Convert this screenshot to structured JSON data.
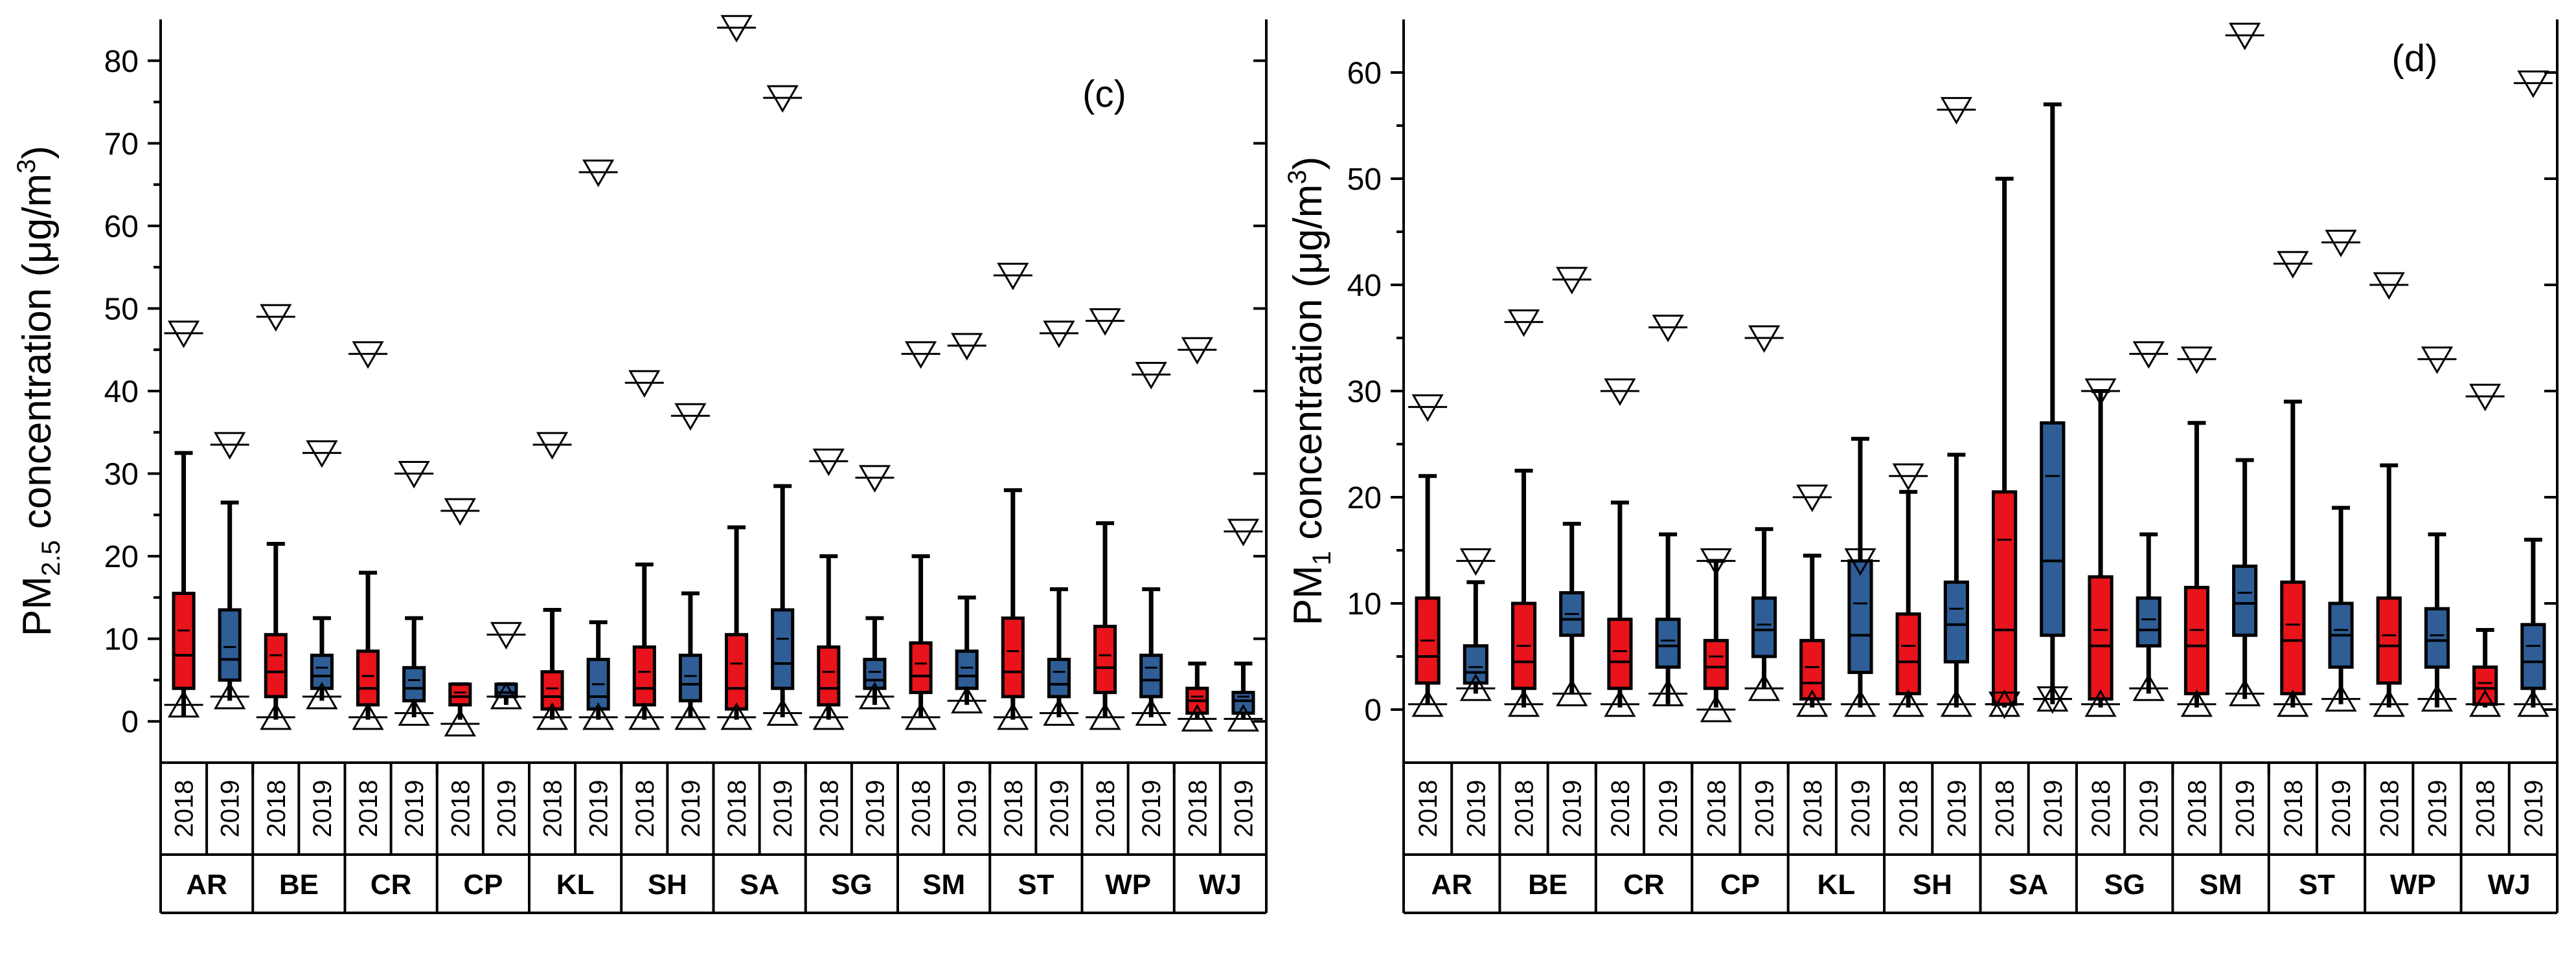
{
  "chart_data": [
    {
      "type": "box",
      "panel_label": "(c)",
      "ylabel_main": "PM",
      "ylabel_sub": "2.5",
      "ylabel_rest": " concentration (μg/m",
      "ylabel_sup": "3",
      "ylabel_end": ")",
      "ylim": [
        -5,
        85
      ],
      "yticks": [
        0,
        10,
        20,
        30,
        40,
        50,
        60,
        70,
        80
      ],
      "stations": [
        "AR",
        "BE",
        "CR",
        "CP",
        "KL",
        "SH",
        "SA",
        "SG",
        "SM",
        "ST",
        "WP",
        "WJ"
      ],
      "years": [
        "2018",
        "2019"
      ],
      "series": [
        {
          "name": "2018",
          "color": "#e8131b",
          "boxes": [
            {
              "station": "AR",
              "min": 0.5,
              "q1": 4,
              "median": 8,
              "mean": 11,
              "q3": 15.5,
              "max": 32.5,
              "p1": 2,
              "p99": 47
            },
            {
              "station": "BE",
              "min": 0.2,
              "q1": 3,
              "median": 6,
              "mean": 8,
              "q3": 10.5,
              "max": 21.5,
              "p1": 0.5,
              "p99": 49
            },
            {
              "station": "CR",
              "min": 0.2,
              "q1": 2,
              "median": 4,
              "mean": 5.5,
              "q3": 8.5,
              "max": 18,
              "p1": 0.5,
              "p99": 44.5
            },
            {
              "station": "CP",
              "min": 0.2,
              "q1": 2,
              "median": 3,
              "mean": 3.5,
              "q3": 4.5,
              "max": 4.5,
              "p1": -0.3,
              "p99": 25.5
            },
            {
              "station": "KL",
              "min": 0.2,
              "q1": 1.5,
              "median": 3,
              "mean": 4,
              "q3": 6,
              "max": 13.5,
              "p1": 0.5,
              "p99": 33.5
            },
            {
              "station": "SH",
              "min": 0.2,
              "q1": 2,
              "median": 4,
              "mean": 6,
              "q3": 9,
              "max": 19,
              "p1": 0.5,
              "p99": 41
            },
            {
              "station": "SA",
              "min": 0.2,
              "q1": 1.5,
              "median": 4,
              "mean": 7,
              "q3": 10.5,
              "max": 23.5,
              "p1": 0.5,
              "p99": 84
            },
            {
              "station": "SG",
              "min": 0.2,
              "q1": 2,
              "median": 4,
              "mean": 6,
              "q3": 9,
              "max": 20,
              "p1": 0.5,
              "p99": 31.5
            },
            {
              "station": "SM",
              "min": 0.5,
              "q1": 3.5,
              "median": 5.5,
              "mean": 7,
              "q3": 9.5,
              "max": 20,
              "p1": 0.5,
              "p99": 44.5
            },
            {
              "station": "ST",
              "min": 0.2,
              "q1": 3,
              "median": 6,
              "mean": 8.5,
              "q3": 12.5,
              "max": 28,
              "p1": 0.5,
              "p99": 54
            },
            {
              "station": "WP",
              "min": 0.5,
              "q1": 3.5,
              "median": 6.5,
              "mean": 8,
              "q3": 11.5,
              "max": 24,
              "p1": 0.5,
              "p99": 48.5
            },
            {
              "station": "WJ",
              "min": 0.2,
              "q1": 1,
              "median": 2.5,
              "mean": 3,
              "q3": 4,
              "max": 7,
              "p1": 0.3,
              "p99": 45
            }
          ]
        },
        {
          "name": "2019",
          "color": "#2f5d96",
          "boxes": [
            {
              "station": "AR",
              "min": 2.5,
              "q1": 5,
              "median": 7.5,
              "mean": 9,
              "q3": 13.5,
              "max": 26.5,
              "p1": 3,
              "p99": 33.5
            },
            {
              "station": "BE",
              "min": 2.5,
              "q1": 4,
              "median": 5.5,
              "mean": 6.5,
              "q3": 8,
              "max": 12.5,
              "p1": 3,
              "p99": 32.5
            },
            {
              "station": "CR",
              "min": 0.5,
              "q1": 2.5,
              "median": 4,
              "mean": 5,
              "q3": 6.5,
              "max": 12.5,
              "p1": 1,
              "p99": 30
            },
            {
              "station": "CP",
              "min": 2,
              "q1": 3,
              "median": 3.5,
              "mean": 3.5,
              "q3": 4.5,
              "max": 4.5,
              "p1": 3,
              "p99": 10.5
            },
            {
              "station": "KL",
              "min": 0.2,
              "q1": 1.5,
              "median": 3,
              "mean": 4.5,
              "q3": 7.5,
              "max": 12,
              "p1": 0.5,
              "p99": 66.5
            },
            {
              "station": "SH",
              "min": 0.5,
              "q1": 2.5,
              "median": 4.5,
              "mean": 5.5,
              "q3": 8,
              "max": 15.5,
              "p1": 0.5,
              "p99": 37
            },
            {
              "station": "SA",
              "min": 0.5,
              "q1": 4,
              "median": 7,
              "mean": 10,
              "q3": 13.5,
              "max": 28.5,
              "p1": 1,
              "p99": 75.5
            },
            {
              "station": "SG",
              "min": 2,
              "q1": 4,
              "median": 5,
              "mean": 6,
              "q3": 7.5,
              "max": 12.5,
              "p1": 3,
              "p99": 29.5
            },
            {
              "station": "SM",
              "min": 2,
              "q1": 4,
              "median": 5.5,
              "mean": 6.5,
              "q3": 8.5,
              "max": 15,
              "p1": 2.5,
              "p99": 45.5
            },
            {
              "station": "ST",
              "min": 0.5,
              "q1": 3,
              "median": 4.5,
              "mean": 6,
              "q3": 7.5,
              "max": 16,
              "p1": 1,
              "p99": 47
            },
            {
              "station": "WP",
              "min": 0.5,
              "q1": 3,
              "median": 5,
              "mean": 6.5,
              "q3": 8,
              "max": 16,
              "p1": 1,
              "p99": 42
            },
            {
              "station": "WJ",
              "min": 0.2,
              "q1": 1,
              "median": 2.5,
              "mean": 3,
              "q3": 3.5,
              "max": 7,
              "p1": 0.3,
              "p99": 23
            }
          ]
        }
      ]
    },
    {
      "type": "box",
      "panel_label": "(d)",
      "ylabel_main": "PM",
      "ylabel_sub": "1",
      "ylabel_rest": " concentration (μg/m",
      "ylabel_sup": "3",
      "ylabel_end": ")",
      "ylim": [
        -5,
        65
      ],
      "yticks": [
        0,
        10,
        20,
        30,
        40,
        50,
        60
      ],
      "stations": [
        "AR",
        "BE",
        "CR",
        "CP",
        "KL",
        "SH",
        "SA",
        "SG",
        "SM",
        "ST",
        "WP",
        "WJ"
      ],
      "years": [
        "2018",
        "2019"
      ],
      "series": [
        {
          "name": "2018",
          "color": "#e8131b",
          "boxes": [
            {
              "station": "AR",
              "min": 0.5,
              "q1": 2.5,
              "median": 5,
              "mean": 6.5,
              "q3": 10.5,
              "max": 22,
              "p1": 0.5,
              "p99": 28.5
            },
            {
              "station": "BE",
              "min": 0.2,
              "q1": 2,
              "median": 4.5,
              "mean": 6,
              "q3": 10,
              "max": 22.5,
              "p1": 0.5,
              "p99": 36.5
            },
            {
              "station": "CR",
              "min": 0.2,
              "q1": 2,
              "median": 4.5,
              "mean": 5.5,
              "q3": 8.5,
              "max": 19.5,
              "p1": 0.5,
              "p99": 30
            },
            {
              "station": "CP",
              "min": 0.2,
              "q1": 2,
              "median": 4,
              "mean": 5,
              "q3": 6.5,
              "max": 14,
              "p1": 0,
              "p99": 14
            },
            {
              "station": "KL",
              "min": 0.2,
              "q1": 1,
              "median": 2.5,
              "mean": 4,
              "q3": 6.5,
              "max": 14.5,
              "p1": 0.5,
              "p99": 20
            },
            {
              "station": "SH",
              "min": 0.2,
              "q1": 1.5,
              "median": 4.5,
              "mean": 6,
              "q3": 9,
              "max": 20.5,
              "p1": 0.5,
              "p99": 22
            },
            {
              "station": "SA",
              "min": 0.2,
              "q1": 0.5,
              "median": 7.5,
              "mean": 16,
              "q3": 20.5,
              "max": 50,
              "p1": 0.5,
              "p99": 0.5
            },
            {
              "station": "SG",
              "min": 0.2,
              "q1": 1,
              "median": 6,
              "mean": 7.5,
              "q3": 12.5,
              "max": 30,
              "p1": 0.5,
              "p99": 30
            },
            {
              "station": "SM",
              "min": 0.2,
              "q1": 1.5,
              "median": 6,
              "mean": 7.5,
              "q3": 11.5,
              "max": 27,
              "p1": 0.5,
              "p99": 33
            },
            {
              "station": "ST",
              "min": 0.2,
              "q1": 1.5,
              "median": 6.5,
              "mean": 8,
              "q3": 12,
              "max": 29,
              "p1": 0.5,
              "p99": 42
            },
            {
              "station": "WP",
              "min": 0.2,
              "q1": 2.5,
              "median": 6,
              "mean": 7,
              "q3": 10.5,
              "max": 23,
              "p1": 0.5,
              "p99": 40
            },
            {
              "station": "WJ",
              "min": 0.2,
              "q1": 0.5,
              "median": 2,
              "mean": 2.5,
              "q3": 4,
              "max": 7.5,
              "p1": 0.5,
              "p99": 29.5
            }
          ]
        },
        {
          "name": "2019",
          "color": "#2f5d96",
          "boxes": [
            {
              "station": "AR",
              "min": 1.5,
              "q1": 2.5,
              "median": 3.5,
              "mean": 4,
              "q3": 6,
              "max": 12,
              "p1": 2,
              "p99": 14
            },
            {
              "station": "BE",
              "min": 1.5,
              "q1": 7,
              "median": 8.5,
              "mean": 9,
              "q3": 11,
              "max": 17.5,
              "p1": 1.5,
              "p99": 40.5
            },
            {
              "station": "CR",
              "min": 0.5,
              "q1": 4,
              "median": 6,
              "mean": 6.5,
              "q3": 8.5,
              "max": 16.5,
              "p1": 1.5,
              "p99": 36
            },
            {
              "station": "CP",
              "min": 2,
              "q1": 5,
              "median": 7.5,
              "mean": 8,
              "q3": 10.5,
              "max": 17,
              "p1": 2,
              "p99": 35
            },
            {
              "station": "KL",
              "min": 0.2,
              "q1": 3.5,
              "median": 7,
              "mean": 10,
              "q3": 14,
              "max": 25.5,
              "p1": 0.5,
              "p99": 14
            },
            {
              "station": "SH",
              "min": 0.2,
              "q1": 4.5,
              "median": 8,
              "mean": 9.5,
              "q3": 12,
              "max": 24,
              "p1": 0.5,
              "p99": 56.5
            },
            {
              "station": "SA",
              "min": 0.5,
              "q1": 7,
              "median": 14,
              "mean": 22,
              "q3": 27,
              "max": 57,
              "p1": 1,
              "p99": 1
            },
            {
              "station": "SG",
              "min": 1.5,
              "q1": 6,
              "median": 7.5,
              "mean": 8.5,
              "q3": 10.5,
              "max": 16.5,
              "p1": 2,
              "p99": 33.5
            },
            {
              "station": "SM",
              "min": 1,
              "q1": 7,
              "median": 10,
              "mean": 11,
              "q3": 13.5,
              "max": 23.5,
              "p1": 1.5,
              "p99": 63.5
            },
            {
              "station": "ST",
              "min": 0.5,
              "q1": 4,
              "median": 7,
              "mean": 7.5,
              "q3": 10,
              "max": 19,
              "p1": 1,
              "p99": 44
            },
            {
              "station": "WP",
              "min": 0.2,
              "q1": 4,
              "median": 6.5,
              "mean": 7,
              "q3": 9.5,
              "max": 16.5,
              "p1": 1,
              "p99": 33
            },
            {
              "station": "WJ",
              "min": 0.2,
              "q1": 2,
              "median": 4.5,
              "mean": 6,
              "q3": 8,
              "max": 16,
              "p1": 0.5,
              "p99": 59
            }
          ]
        }
      ]
    }
  ]
}
